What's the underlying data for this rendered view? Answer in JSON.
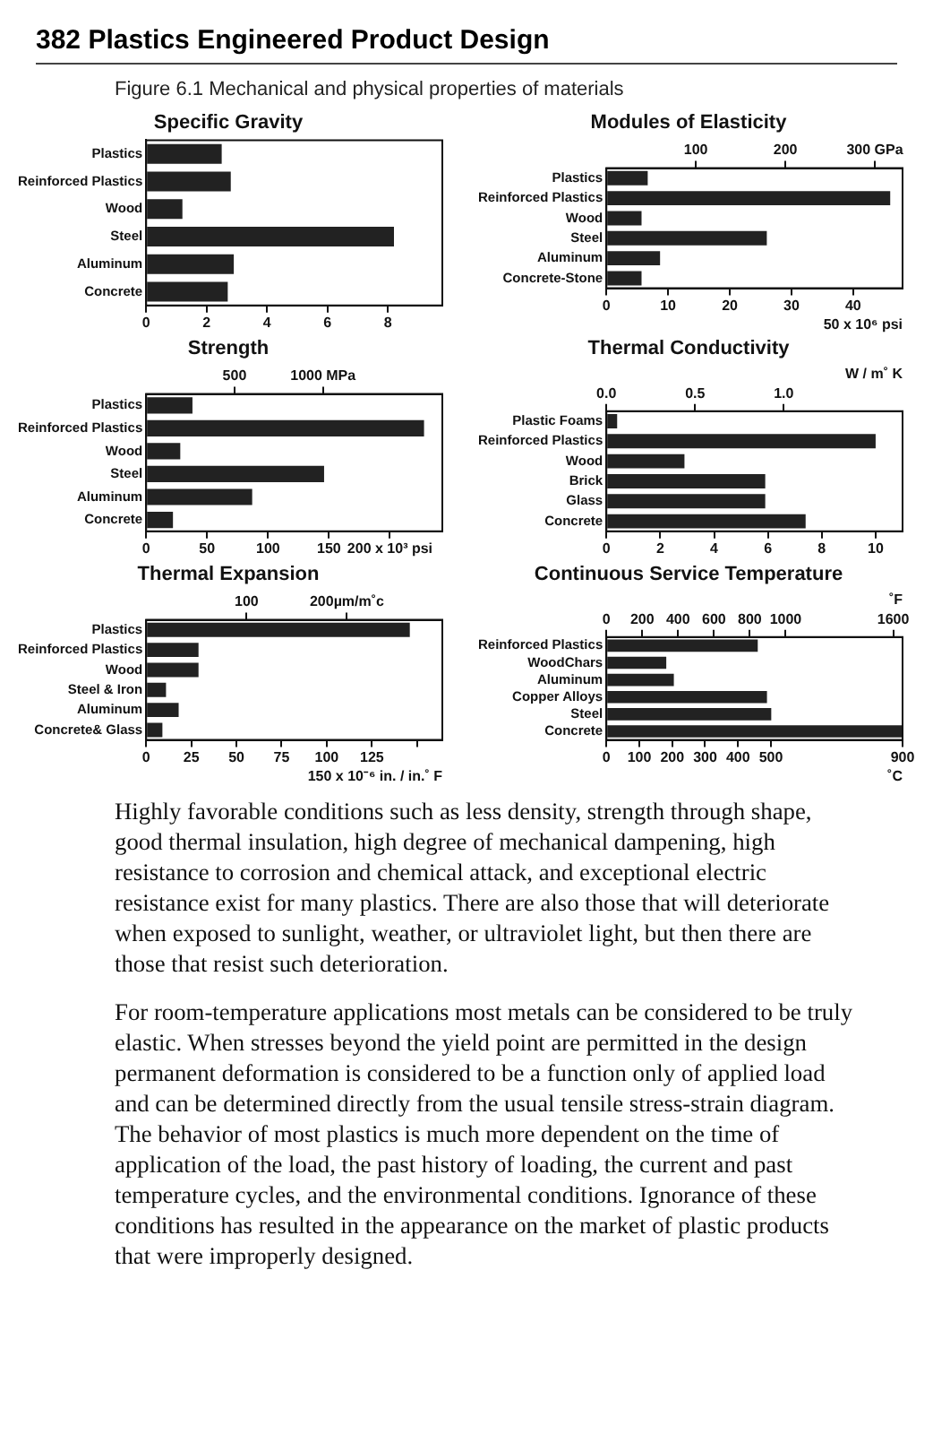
{
  "chart_data": [
    {
      "type": "bar",
      "orientation": "horizontal",
      "title": "Specific Gravity",
      "categories": [
        "Plastics",
        "Reinforced Plastics",
        "Wood",
        "Steel",
        "Aluminum",
        "Concrete"
      ],
      "values": [
        2.5,
        2.8,
        1.2,
        8.2,
        2.9,
        2.7
      ],
      "color": "#222222",
      "xlim": [
        0,
        9.8
      ],
      "xticks": [
        0,
        2,
        4,
        6,
        8
      ],
      "annotations": [
        "382 Plastics Engineered Product Design",
        "Figure 6.1 Mechanical and physical properties of materials"
      ]
    },
    {
      "type": "bar",
      "orientation": "horizontal",
      "title": "Modules of Elasticity",
      "categories": [
        "Plastics",
        "Reinforced Plastics",
        "Wood",
        "Steel",
        "Aluminum",
        "Concrete-Stone"
      ],
      "values": [
        6.7,
        46,
        5.7,
        26,
        8.7,
        5.7
      ],
      "color": "#222222",
      "xlim": [
        0,
        48
      ],
      "xticks": [
        0,
        10,
        20,
        30,
        40
      ],
      "xlabel": "50 x 10⁶ psi",
      "x2lim": [
        0,
        331
      ],
      "x2ticks": [
        100,
        200,
        {
          "value": 300,
          "label": "300 GPa"
        }
      ]
    },
    {
      "type": "bar",
      "orientation": "horizontal",
      "title": "Strength",
      "categories": [
        "Plastics",
        "Reinforced Plastics",
        "Wood",
        "Steel",
        "Aluminum",
        "Concrete"
      ],
      "values": [
        38,
        228,
        28,
        146,
        87,
        22
      ],
      "color": "#222222",
      "xlim": [
        0,
        243
      ],
      "xticks": [
        0,
        50,
        100,
        150,
        {
          "value": 200,
          "label": "200 x 10³ psi"
        }
      ],
      "x2lim": [
        0,
        1675
      ],
      "x2ticks": [
        500,
        {
          "value": 1000,
          "label": "1000 MPa"
        }
      ]
    },
    {
      "type": "bar",
      "orientation": "horizontal",
      "title": "Thermal Conductivity",
      "categories": [
        "Plastic Foams",
        "Reinforced Plastics",
        "Wood",
        "Brick",
        "Glass",
        "Concrete"
      ],
      "values": [
        0.4,
        10,
        2.9,
        5.9,
        5.9,
        7.4
      ],
      "color": "#222222",
      "xlim": [
        0,
        11
      ],
      "xticks": [
        0,
        2,
        4,
        6,
        8,
        10
      ],
      "x2lim": [
        0,
        1.67
      ],
      "x2ticks": [
        {
          "value": 0,
          "label": "0.0"
        },
        0.5,
        {
          "value": 1,
          "label": "1.0"
        }
      ],
      "x2label": "W / m˚ K"
    },
    {
      "type": "bar",
      "orientation": "horizontal",
      "title": "Thermal Expansion",
      "categories": [
        "Plastics",
        "Reinforced Plastics",
        "Wood",
        "Steel & Iron",
        "Aluminum",
        "Concrete& Glass"
      ],
      "values": [
        146,
        29,
        29,
        11,
        18,
        9
      ],
      "color": "#222222",
      "xlim": [
        0,
        164
      ],
      "xticks": [
        0,
        25,
        50,
        75,
        100,
        125,
        {
          "value": 150,
          "label": null
        }
      ],
      "xlabel": "150 x 10⁻⁶ in. / in.˚ F",
      "x2lim": [
        0,
        295
      ],
      "x2ticks": [
        100,
        {
          "value": 200,
          "label": "200µm/m˚c"
        }
      ]
    },
    {
      "type": "bar",
      "orientation": "horizontal",
      "title": "Continuous Service Temperature",
      "categories": [
        "Reinforced Plastics",
        "WoodChars",
        "Aluminum",
        "Copper Alloys",
        "Steel",
        "Concrete"
      ],
      "values": [
        460,
        182,
        205,
        488,
        501,
        900
      ],
      "color": "#222222",
      "xlim": [
        0,
        900
      ],
      "xticks": [
        0,
        100,
        200,
        300,
        400,
        500,
        900
      ],
      "xlabel": "˚C",
      "x2lim": [
        0,
        1652
      ],
      "x2ticks": [
        0,
        200,
        400,
        600,
        800,
        1000,
        1600
      ],
      "x2label": "˚F",
      "annotations": [
        "Highly favorable conditions such as less density, strength through shape, good thermal insulation, high degree of mechanical dampening, high resistance to corrosion and chemical attack, and exceptional electric resistance exist for many plastics. There are also those that will deteriorate when exposed to sunlight, weather, or ultraviolet light, but then there are those that resist such deterioration.",
        "For room-temperature applications most metals can be considered to be truly elastic. When stresses beyond the yield point are permitted in the design permanent deformation is considered to be a function only of applied load and can be determined directly from the usual tensile stress-strain diagram. The behavior of most plastics is much more dependent on the time of application of the load, the past history of loading, the current and past temperature cycles, and the environmental conditions. Ignorance of these conditions has resulted in the appearance on the market of plastic products that were improperly designed."
      ]
    }
  ]
}
